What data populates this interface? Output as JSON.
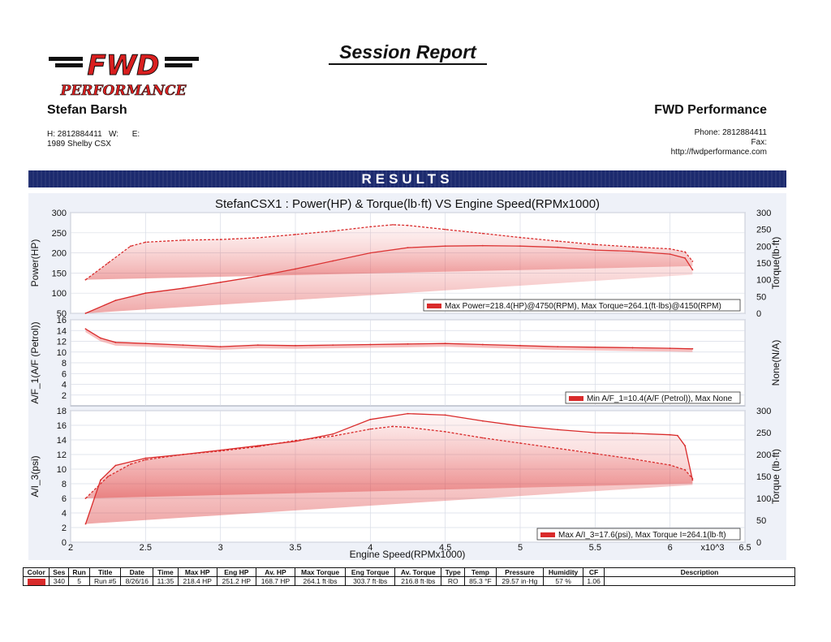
{
  "header": {
    "logo_text_top": "FWD",
    "logo_text_bottom": "PERFORMANCE",
    "report_title": "Session Report",
    "customer_name": "Stefan Barsh",
    "customer_contact": "H: 2812884411   W:      E:",
    "vehicle": "1989 Shelby CSX",
    "company_name": "FWD Performance",
    "company_phone": "Phone: 2812884411",
    "company_fax": "Fax:",
    "company_url": "http://fwdperformance.com",
    "results_label": "RESULTS"
  },
  "colors": {
    "series": "#d92b2b",
    "band": "#f08080",
    "bar": "#1c2a6e",
    "panel_bg": "#eef1f8"
  },
  "chart_data": {
    "type": "line",
    "title": "StefanCSX1 : Power(HP) & Torque(lb·ft) VS Engine Speed(RPMx1000)",
    "xlabel": "Engine Speed(RPMx1000)",
    "x_multiplier_label": "x10^3",
    "xlim": [
      2,
      6.5
    ],
    "x_ticks": [
      "2",
      "2.5",
      "3",
      "3.5",
      "4",
      "4.5",
      "5",
      "5.5",
      "6",
      "6.5"
    ],
    "panels": [
      {
        "id": "power",
        "ylabel_left": "Power(HP)",
        "ylabel_right": "Torque(lb·ft)",
        "ylim_left": [
          50,
          300
        ],
        "ylim_right": [
          0,
          300
        ],
        "ticks_left": [
          "50",
          "100",
          "150",
          "200",
          "250",
          "300"
        ],
        "ticks_right": [
          "0",
          "50",
          "100",
          "150",
          "200",
          "250",
          "300"
        ],
        "legend": "Max Power=218.4(HP)@4750(RPM), Max Torque=264.1(ft·lbs)@4150(RPM)",
        "series": [
          {
            "style": "solid",
            "axis": "left",
            "x": [
              2.1,
              2.3,
              2.5,
              2.75,
              3.0,
              3.25,
              3.5,
              3.75,
              4.0,
              4.25,
              4.5,
              4.75,
              5.0,
              5.25,
              5.5,
              5.75,
              6.0,
              6.1,
              6.15
            ],
            "values": [
              45,
              82,
              100,
              112,
              127,
              142,
              160,
              180,
              200,
              213,
              217,
              218,
              217,
              214,
              207,
              204,
              197,
              187,
              158
            ]
          },
          {
            "style": "dashed",
            "axis": "right",
            "x": [
              2.1,
              2.25,
              2.4,
              2.5,
              2.75,
              3.0,
              3.25,
              3.5,
              3.75,
              4.0,
              4.15,
              4.25,
              4.5,
              4.75,
              5.0,
              5.25,
              5.5,
              5.75,
              6.0,
              6.1,
              6.15
            ],
            "values": [
              100,
              150,
              200,
              212,
              218,
              220,
              225,
              235,
              245,
              258,
              264,
              262,
              250,
              238,
              226,
              215,
              205,
              198,
              192,
              183,
              155
            ]
          }
        ]
      },
      {
        "id": "afr",
        "ylabel_left": "A/F_1(A/F (Petrol))",
        "ylabel_right": "None(N/A)",
        "ylim_left": [
          0,
          16
        ],
        "ticks_left": [
          "2",
          "4",
          "6",
          "8",
          "10",
          "12",
          "14",
          "16"
        ],
        "legend": "Min A/F_1=10.4(A/F (Petrol)), Max None",
        "series": [
          {
            "style": "solid",
            "axis": "left",
            "x": [
              2.1,
              2.2,
              2.3,
              2.5,
              2.75,
              3.0,
              3.25,
              3.5,
              3.75,
              4.0,
              4.25,
              4.5,
              4.75,
              5.0,
              5.25,
              5.5,
              5.75,
              6.0,
              6.15
            ],
            "values": [
              14.3,
              12.6,
              11.8,
              11.6,
              11.3,
              11.0,
              11.3,
              11.2,
              11.3,
              11.4,
              11.5,
              11.6,
              11.4,
              11.2,
              11.0,
              10.9,
              10.8,
              10.7,
              10.6
            ]
          }
        ]
      },
      {
        "id": "aux",
        "ylabel_left": "A/I_3(psi)",
        "ylabel_right": "Torque (lb·ft)",
        "ylim_left": [
          0,
          18
        ],
        "ylim_right": [
          0,
          300
        ],
        "ticks_left": [
          "0",
          "2",
          "4",
          "6",
          "8",
          "10",
          "12",
          "14",
          "16",
          "18"
        ],
        "ticks_right": [
          "0",
          "50",
          "100",
          "150",
          "200",
          "250",
          "300"
        ],
        "legend": "Max A/I_3=17.6(psi), Max Torque I=264.1(lb·ft)",
        "series": [
          {
            "style": "solid",
            "axis": "left",
            "x": [
              2.1,
              2.2,
              2.3,
              2.5,
              2.75,
              3.0,
              3.25,
              3.5,
              3.75,
              4.0,
              4.25,
              4.5,
              4.75,
              5.0,
              5.25,
              5.5,
              5.75,
              6.0,
              6.05,
              6.1,
              6.15
            ],
            "values": [
              2.5,
              8.5,
              10.5,
              11.5,
              12.0,
              12.6,
              13.2,
              13.8,
              14.8,
              16.8,
              17.6,
              17.4,
              16.6,
              15.9,
              15.4,
              15.0,
              14.9,
              14.7,
              14.6,
              13.2,
              8.5
            ]
          },
          {
            "style": "dashed",
            "axis": "right",
            "x": [
              2.1,
              2.25,
              2.4,
              2.5,
              2.75,
              3.0,
              3.25,
              3.5,
              3.75,
              4.0,
              4.15,
              4.25,
              4.5,
              4.75,
              5.0,
              5.25,
              5.5,
              5.75,
              6.0,
              6.1,
              6.15
            ],
            "values": [
              100,
              150,
              178,
              188,
              200,
              208,
              218,
              232,
              242,
              258,
              264,
              262,
              252,
              238,
              226,
              214,
              202,
              190,
              176,
              165,
              145
            ]
          }
        ]
      }
    ]
  },
  "summary_table": {
    "headers": [
      "Color",
      "Ses",
      "Run",
      "Title",
      "Date",
      "Time",
      "Max HP",
      "Eng HP",
      "Av. HP",
      "Max Torque",
      "Eng Torque",
      "Av. Torque",
      "Type",
      "Temp",
      "Pressure",
      "Humidity",
      "CF",
      "Description"
    ],
    "rows": [
      [
        "",
        "340",
        "5",
        "Run #5",
        "8/26/16",
        "11:35",
        "218.4 HP",
        "251.2 HP",
        "168.7 HP",
        "264.1 ft·lbs",
        "303.7 ft·lbs",
        "216.8 ft·lbs",
        "RO",
        "85.3 °F",
        "29.57 in·Hg",
        "57 %",
        "1.06",
        ""
      ]
    ]
  }
}
